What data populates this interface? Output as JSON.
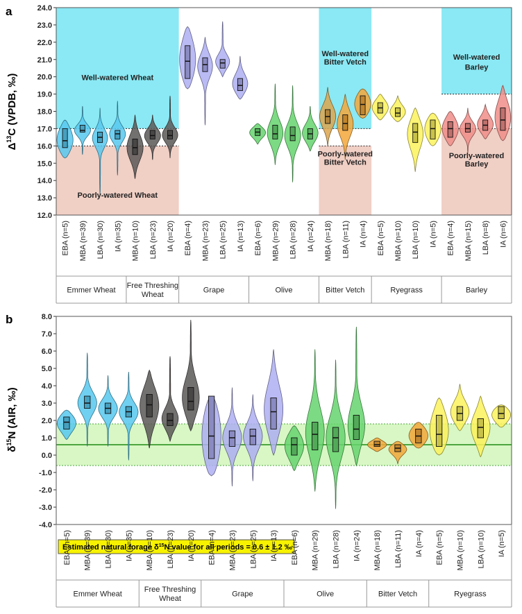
{
  "chart_data": [
    {
      "type": "violin",
      "panel_label": "a",
      "ylabel": "Δ13C (VPDB, ‰)",
      "ylabel_main": "Δ",
      "ylabel_sup": "13",
      "ylabel_rest": "C (VPDB, ‰)",
      "ylim": [
        12.0,
        24.0
      ],
      "yticks": [
        "12.0",
        "13.0",
        "14.0",
        "15.0",
        "16.0",
        "17.0",
        "18.0",
        "19.0",
        "20.0",
        "21.0",
        "22.0",
        "23.0",
        "24.0"
      ],
      "groups": [
        {
          "name": "Emmer Wheat",
          "n_cat": 4
        },
        {
          "name": "Free Threshing Wheat",
          "n_cat": 3
        },
        {
          "name": "Grape",
          "n_cat": 4
        },
        {
          "name": "Olive",
          "n_cat": 4
        },
        {
          "name": "Bitter Vetch",
          "n_cat": 3
        },
        {
          "name": "Ryegrass",
          "n_cat": 4
        },
        {
          "name": "Barley",
          "n_cat": 4
        }
      ],
      "categories": [
        "EBA (n=5)",
        "MBA (n=39)",
        "LBA (n=30)",
        "IA (n=35)",
        "MBA (n=10)",
        "LBA (n=23)",
        "IA (n=20)",
        "EBA (n=4)",
        "MBA (n=23)",
        "LBA (n=25)",
        "IA (n=13)",
        "EBA (n=6)",
        "MBA (n=29)",
        "LBA (n=28)",
        "IA (n=24)",
        "MBA (n=18)",
        "LBA (n=11)",
        "IA (n=4)",
        "EBA (n=5)",
        "MBA (n=10)",
        "LBA (n=10)",
        "IA (n=5)",
        "EBA (n=4)",
        "MBA (n=15)",
        "LBA (n=8)",
        "IA (n=6)"
      ],
      "series": [
        {
          "group": "Emmer Wheat",
          "color": "#57c8ef",
          "min": 15.3,
          "max": 17.5,
          "q1": 15.9,
          "median": 16.3,
          "q3": 17.0
        },
        {
          "group": "Emmer Wheat",
          "color": "#57c8ef",
          "min": 15.5,
          "max": 18.3,
          "q1": 16.8,
          "median": 16.9,
          "q3": 17.2
        },
        {
          "group": "Emmer Wheat",
          "color": "#57c8ef",
          "min": 13.2,
          "max": 18.2,
          "q1": 16.2,
          "median": 16.5,
          "q3": 16.8
        },
        {
          "group": "Emmer Wheat",
          "color": "#57c8ef",
          "min": 14.3,
          "max": 18.6,
          "q1": 16.4,
          "median": 16.7,
          "q3": 16.9
        },
        {
          "group": "Free Threshing Wheat",
          "color": "#5b5857",
          "min": 14.1,
          "max": 17.8,
          "q1": 15.5,
          "median": 15.9,
          "q3": 16.4
        },
        {
          "group": "Free Threshing Wheat",
          "color": "#5b5857",
          "min": 15.2,
          "max": 17.8,
          "q1": 16.4,
          "median": 16.6,
          "q3": 16.9
        },
        {
          "group": "Free Threshing Wheat",
          "color": "#5b5857",
          "min": 15.3,
          "max": 18.9,
          "q1": 16.4,
          "median": 16.6,
          "q3": 16.9
        },
        {
          "group": "Grape",
          "color": "#aeaef2",
          "min": 19.3,
          "max": 22.9,
          "q1": 19.9,
          "median": 20.9,
          "q3": 21.8
        },
        {
          "group": "Grape",
          "color": "#aeaef2",
          "min": 17.2,
          "max": 22.3,
          "q1": 20.3,
          "median": 20.7,
          "q3": 21.1
        },
        {
          "group": "Grape",
          "color": "#aeaef2",
          "min": 20.0,
          "max": 23.2,
          "q1": 20.5,
          "median": 20.8,
          "q3": 21.0
        },
        {
          "group": "Grape",
          "color": "#aeaef2",
          "min": 18.7,
          "max": 21.2,
          "q1": 19.2,
          "median": 19.5,
          "q3": 19.9
        },
        {
          "group": "Olive",
          "color": "#66d46f",
          "min": 16.1,
          "max": 17.3,
          "q1": 16.6,
          "median": 16.8,
          "q3": 17.0
        },
        {
          "group": "Olive",
          "color": "#66d46f",
          "min": 14.9,
          "max": 19.6,
          "q1": 16.4,
          "median": 16.7,
          "q3": 17.2
        },
        {
          "group": "Olive",
          "color": "#66d46f",
          "min": 13.9,
          "max": 19.5,
          "q1": 16.3,
          "median": 16.6,
          "q3": 17.1
        },
        {
          "group": "Olive",
          "color": "#66d46f",
          "min": 15.7,
          "max": 18.3,
          "q1": 16.4,
          "median": 16.7,
          "q3": 17.0
        },
        {
          "group": "Bitter Vetch",
          "color": "#dca64e",
          "min": 16.0,
          "max": 19.4,
          "q1": 17.3,
          "median": 17.7,
          "q3": 18.1
        },
        {
          "group": "Bitter Vetch",
          "color": "#f3a73a",
          "min": 15.2,
          "max": 19.0,
          "q1": 16.9,
          "median": 17.3,
          "q3": 17.8
        },
        {
          "group": "Bitter Vetch",
          "color": "#f3a73a",
          "min": 17.6,
          "max": 19.3,
          "q1": 17.8,
          "median": 18.4,
          "q3": 18.9
        },
        {
          "group": "Ryegrass",
          "color": "#fbf25c",
          "min": 17.5,
          "max": 19.0,
          "q1": 17.9,
          "median": 18.2,
          "q3": 18.5
        },
        {
          "group": "Ryegrass",
          "color": "#fbf25c",
          "min": 17.4,
          "max": 18.9,
          "q1": 17.7,
          "median": 17.9,
          "q3": 18.2
        },
        {
          "group": "Ryegrass",
          "color": "#fbf25c",
          "min": 14.5,
          "max": 18.2,
          "q1": 16.2,
          "median": 16.8,
          "q3": 17.3
        },
        {
          "group": "Ryegrass",
          "color": "#fbf25c",
          "min": 16.0,
          "max": 17.9,
          "q1": 16.4,
          "median": 17.0,
          "q3": 17.5
        },
        {
          "group": "Barley",
          "color": "#f08d88",
          "min": 16.0,
          "max": 18.0,
          "q1": 16.5,
          "median": 17.0,
          "q3": 17.4
        },
        {
          "group": "Barley",
          "color": "#f08d88",
          "min": 15.6,
          "max": 18.2,
          "q1": 16.8,
          "median": 17.0,
          "q3": 17.3
        },
        {
          "group": "Barley",
          "color": "#f08d88",
          "min": 16.4,
          "max": 18.4,
          "q1": 16.9,
          "median": 17.2,
          "q3": 17.5
        },
        {
          "group": "Barley",
          "color": "#f08d88",
          "min": 16.3,
          "max": 19.5,
          "q1": 16.9,
          "median": 17.5,
          "q3": 18.2
        }
      ],
      "bands": [
        {
          "label": "Well-watered Wheat",
          "color": "#8ae9f4",
          "range": [
            17.0,
            24.0
          ],
          "from_cat": 0,
          "to_cat": 6
        },
        {
          "label": "Poorly-watered Wheat",
          "color": "#f0cfc5",
          "range": [
            12.0,
            16.0
          ],
          "from_cat": 0,
          "to_cat": 6
        },
        {
          "label": "Well-watered Bitter Vetch",
          "color": "#8ae9f4",
          "range": [
            17.0,
            24.0
          ],
          "from_cat": 15,
          "to_cat": 17
        },
        {
          "label": "Poorly-watered Bitter Vetch",
          "color": "#f0cfc5",
          "range": [
            12.0,
            16.0
          ],
          "from_cat": 15,
          "to_cat": 17
        },
        {
          "label": "Well-watered Barley",
          "color": "#8ae9f4",
          "range": [
            19.0,
            24.0
          ],
          "from_cat": 22,
          "to_cat": 25
        },
        {
          "label": "Poorly-watered Barley",
          "color": "#f0cfc5",
          "range": [
            12.0,
            17.0
          ],
          "from_cat": 22,
          "to_cat": 25
        }
      ],
      "annotations": [
        {
          "text": "Well-watered Wheat",
          "y": 19.8,
          "cat": 3
        },
        {
          "text": "Poorly-watered Wheat",
          "y": 13.0,
          "cat": 3
        },
        {
          "text": "Well-watered",
          "y": 21.2,
          "cat": 16
        },
        {
          "text": "Bitter Vetch",
          "y": 20.7,
          "cat": 16
        },
        {
          "text": "Poorly-watered",
          "y": 15.4,
          "cat": 16
        },
        {
          "text": "Bitter Vetch",
          "y": 14.9,
          "cat": 16
        },
        {
          "text": "Well-watered",
          "y": 21.0,
          "cat": 23.5
        },
        {
          "text": "Barley",
          "y": 20.4,
          "cat": 23.5
        },
        {
          "text": "Poorly-watered",
          "y": 15.3,
          "cat": 23.5
        },
        {
          "text": "Barley",
          "y": 14.8,
          "cat": 23.5
        }
      ]
    },
    {
      "type": "violin",
      "panel_label": "b",
      "ylabel": "δ15N (AIR, ‰)",
      "ylabel_main": "δ",
      "ylabel_sup": "15",
      "ylabel_rest": "N (AIR, ‰)",
      "ylim": [
        -4.0,
        8.0
      ],
      "yticks": [
        "-4.0",
        "-3.0",
        "-2.0",
        "-1.0",
        "0.0",
        "1.0",
        "2.0",
        "3.0",
        "4.0",
        "5.0",
        "6.0",
        "7.0",
        "8.0"
      ],
      "groups": [
        {
          "name": "Emmer Wheat",
          "n_cat": 4
        },
        {
          "name": "Free Threshing Wheat",
          "n_cat": 3
        },
        {
          "name": "Grape",
          "n_cat": 4
        },
        {
          "name": "Olive",
          "n_cat": 4
        },
        {
          "name": "Bitter Vetch",
          "n_cat": 3
        },
        {
          "name": "Ryegrass",
          "n_cat": 4
        }
      ],
      "categories": [
        "EBA (n=5)",
        "MBA (n=39)",
        "LBA (n=30)",
        "IA (n=35)",
        "MBA (n=10)",
        "LBA (n=23)",
        "IA (n=20)",
        "EBA (n=4)",
        "MBA (n=23)",
        "LBA (n=25)",
        "IA (n=13)",
        "EBA (n=6)",
        "MBA (n=29)",
        "LBA (n=28)",
        "IA (n=24)",
        "MBA (n=18)",
        "LBA (n=11)",
        "IA (n=4)",
        "EBA (n=5)",
        "MBA (n=10)",
        "LBA (n=10)",
        "IA (n=5)"
      ],
      "series": [
        {
          "group": "Emmer Wheat",
          "color": "#57c8ef",
          "min": 0.9,
          "max": 2.6,
          "q1": 1.5,
          "median": 1.9,
          "q3": 2.2
        },
        {
          "group": "Emmer Wheat",
          "color": "#57c8ef",
          "min": 0.5,
          "max": 5.9,
          "q1": 2.7,
          "median": 3.0,
          "q3": 3.4
        },
        {
          "group": "Emmer Wheat",
          "color": "#57c8ef",
          "min": 0.5,
          "max": 4.6,
          "q1": 2.4,
          "median": 2.7,
          "q3": 3.0
        },
        {
          "group": "Emmer Wheat",
          "color": "#57c8ef",
          "min": -0.3,
          "max": 4.8,
          "q1": 2.2,
          "median": 2.5,
          "q3": 2.8
        },
        {
          "group": "Free Threshing Wheat",
          "color": "#5b5857",
          "min": 0.4,
          "max": 4.9,
          "q1": 2.2,
          "median": 2.9,
          "q3": 3.5
        },
        {
          "group": "Free Threshing Wheat",
          "color": "#5b5857",
          "min": 0.8,
          "max": 5.7,
          "q1": 1.7,
          "median": 2.0,
          "q3": 2.4
        },
        {
          "group": "Free Threshing Wheat",
          "color": "#5b5857",
          "min": 1.4,
          "max": 7.8,
          "q1": 2.6,
          "median": 3.1,
          "q3": 3.9
        },
        {
          "group": "Grape",
          "color": "#aeaef2",
          "min": -1.2,
          "max": 3.4,
          "q1": -0.2,
          "median": 1.1,
          "q3": 3.4
        },
        {
          "group": "Grape",
          "color": "#aeaef2",
          "min": -1.8,
          "max": 3.9,
          "q1": 0.5,
          "median": 1.0,
          "q3": 1.4
        },
        {
          "group": "Grape",
          "color": "#aeaef2",
          "min": -1.5,
          "max": 3.5,
          "q1": 0.6,
          "median": 1.1,
          "q3": 1.5
        },
        {
          "group": "Grape",
          "color": "#aeaef2",
          "min": 0.0,
          "max": 6.1,
          "q1": 1.5,
          "median": 2.5,
          "q3": 3.3
        },
        {
          "group": "Olive",
          "color": "#66d46f",
          "min": -0.9,
          "max": 1.7,
          "q1": 0.0,
          "median": 0.6,
          "q3": 1.0
        },
        {
          "group": "Olive",
          "color": "#66d46f",
          "min": -2.1,
          "max": 6.1,
          "q1": 0.3,
          "median": 1.2,
          "q3": 1.9
        },
        {
          "group": "Olive",
          "color": "#66d46f",
          "min": -3.1,
          "max": 5.5,
          "q1": 0.2,
          "median": 1.0,
          "q3": 1.6
        },
        {
          "group": "Olive",
          "color": "#66d46f",
          "min": -0.6,
          "max": 7.4,
          "q1": 0.9,
          "median": 1.5,
          "q3": 2.3
        },
        {
          "group": "Bitter Vetch",
          "color": "#f3a73a",
          "min": 0.2,
          "max": 1.0,
          "q1": 0.5,
          "median": 0.6,
          "q3": 0.8
        },
        {
          "group": "Bitter Vetch",
          "color": "#f3a73a",
          "min": -0.5,
          "max": 0.8,
          "q1": 0.2,
          "median": 0.4,
          "q3": 0.6
        },
        {
          "group": "Bitter Vetch",
          "color": "#f3a73a",
          "min": 0.4,
          "max": 1.9,
          "q1": 0.7,
          "median": 1.1,
          "q3": 1.5
        },
        {
          "group": "Ryegrass",
          "color": "#fbf25c",
          "min": 0.0,
          "max": 3.3,
          "q1": 0.5,
          "median": 1.2,
          "q3": 2.3
        },
        {
          "group": "Ryegrass",
          "color": "#fbf25c",
          "min": 1.4,
          "max": 4.1,
          "q1": 2.0,
          "median": 2.4,
          "q3": 2.8
        },
        {
          "group": "Ryegrass",
          "color": "#fbf25c",
          "min": -0.1,
          "max": 3.4,
          "q1": 1.0,
          "median": 1.6,
          "q3": 2.1
        },
        {
          "group": "Ryegrass",
          "color": "#fbf25c",
          "min": 1.6,
          "max": 2.9,
          "q1": 2.1,
          "median": 2.4,
          "q3": 2.8
        }
      ],
      "reference": {
        "center": 0.6,
        "band": [
          -0.6,
          1.8
        ],
        "color": "#d8f7c4",
        "line_color": "#4ca53f"
      },
      "legend_note": "Estimated natural forage δ15N value for all periods = 0.6 ± 1.2 ‰",
      "legend_prefix": "Estimated natural forage δ",
      "legend_sup": "15",
      "legend_suffix": "N value for all periods = 0.6 ± 1.2 ‰"
    }
  ]
}
